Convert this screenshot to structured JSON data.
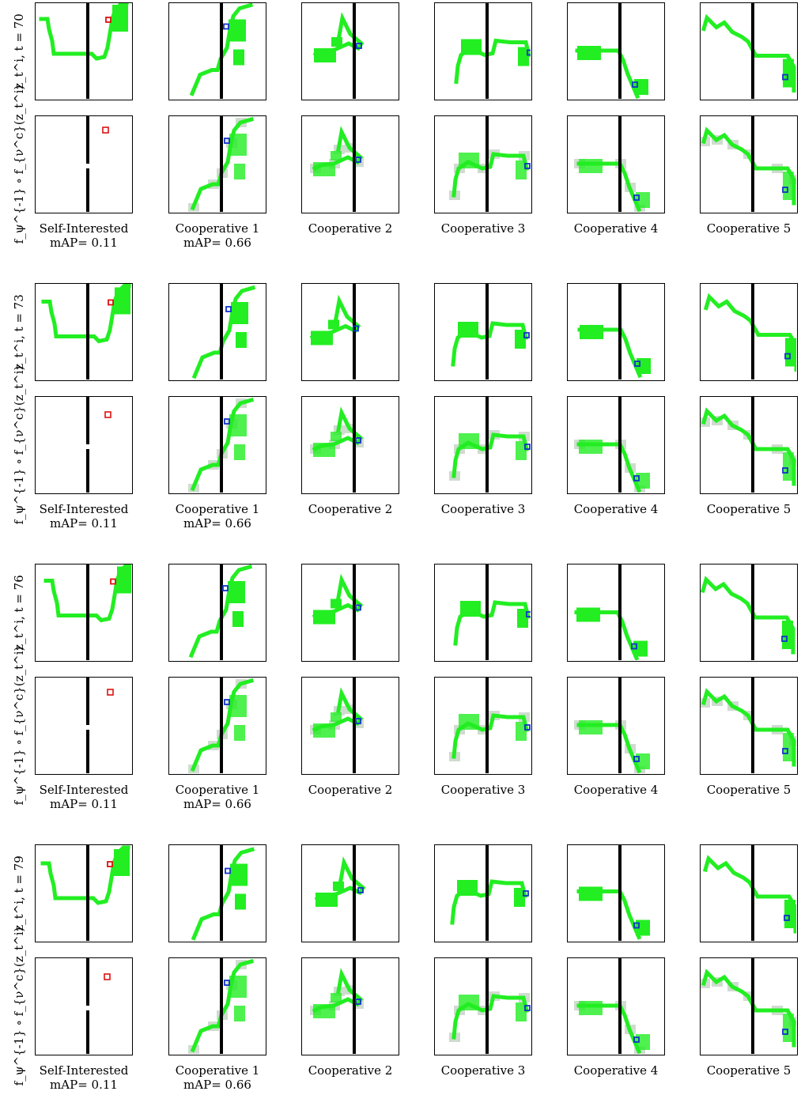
{
  "blocks": [
    {
      "row_labels": [
        "z_t^i, t = 70",
        "f_ψ^{-1} ∘ f_{ν^c}(z_t^i)"
      ],
      "captions": [
        "Self-Interested",
        "Cooperative 1",
        "Cooperative 2",
        "Cooperative 3",
        "Cooperative 4",
        "Cooperative 5"
      ],
      "map_values": [
        "mAP= 0.11",
        "mAP= 0.66",
        "",
        "",
        "",
        ""
      ]
    },
    {
      "row_labels": [
        "z_t^i, t = 73",
        "f_ψ^{-1} ∘ f_{ν^c}(z_t^i)"
      ],
      "captions": [
        "Self-Interested",
        "Cooperative 1",
        "Cooperative 2",
        "Cooperative 3",
        "Cooperative 4",
        "Cooperative 5"
      ],
      "map_values": [
        "mAP= 0.11",
        "mAP= 0.66",
        "",
        "",
        "",
        ""
      ]
    },
    {
      "row_labels": [
        "z_t^i, t = 76",
        "f_ψ^{-1} ∘ f_{ν^c}(z_t^i)"
      ],
      "captions": [
        "Self-Interested",
        "Cooperative 1",
        "Cooperative 2",
        "Cooperative 3",
        "Cooperative 4",
        "Cooperative 5"
      ],
      "map_values": [
        "mAP= 0.11",
        "mAP= 0.66",
        "",
        "",
        "",
        ""
      ]
    },
    {
      "row_labels": [
        "z_t^i, t = 79",
        "f_ψ^{-1} ∘ f_{ν^c}(z_t^i)"
      ],
      "captions": [
        "Self-Interested",
        "Cooperative 1",
        "Cooperative 2",
        "Cooperative 3",
        "Cooperative 4",
        "Cooperative 5"
      ],
      "map_values": [
        "mAP= 0.11",
        "mAP= 0.66",
        "",
        "",
        "",
        ""
      ]
    }
  ],
  "colors": {
    "trail": "#22ee22",
    "wall": "#000000",
    "self_agent_marker": "#dd1111",
    "coop_agent_marker": "#1133cc",
    "frame": "#000000"
  }
}
